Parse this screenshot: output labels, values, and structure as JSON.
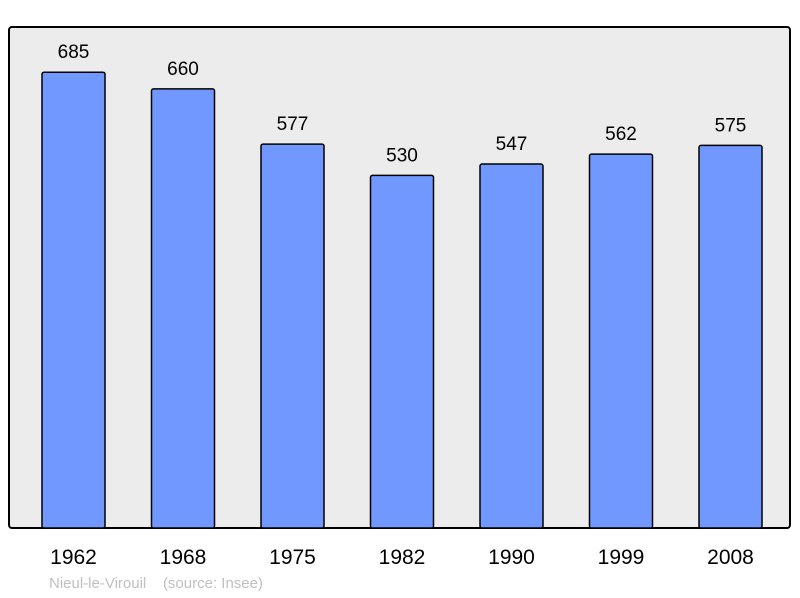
{
  "chart_data": {
    "type": "bar",
    "title": "",
    "xlabel": "",
    "ylabel": "",
    "categories": [
      "1962",
      "1968",
      "1975",
      "1982",
      "1990",
      "1999",
      "2008"
    ],
    "values": [
      685,
      660,
      577,
      530,
      547,
      562,
      575
    ],
    "ylim": [
      0,
      753
    ],
    "grid": false,
    "data_labels": true,
    "colors": {
      "bar": "#7098ff",
      "background": "#ececec",
      "border": "#000000"
    }
  },
  "footer": {
    "place": "Nieul-le-Virouil",
    "source": "(source: Insee)"
  }
}
